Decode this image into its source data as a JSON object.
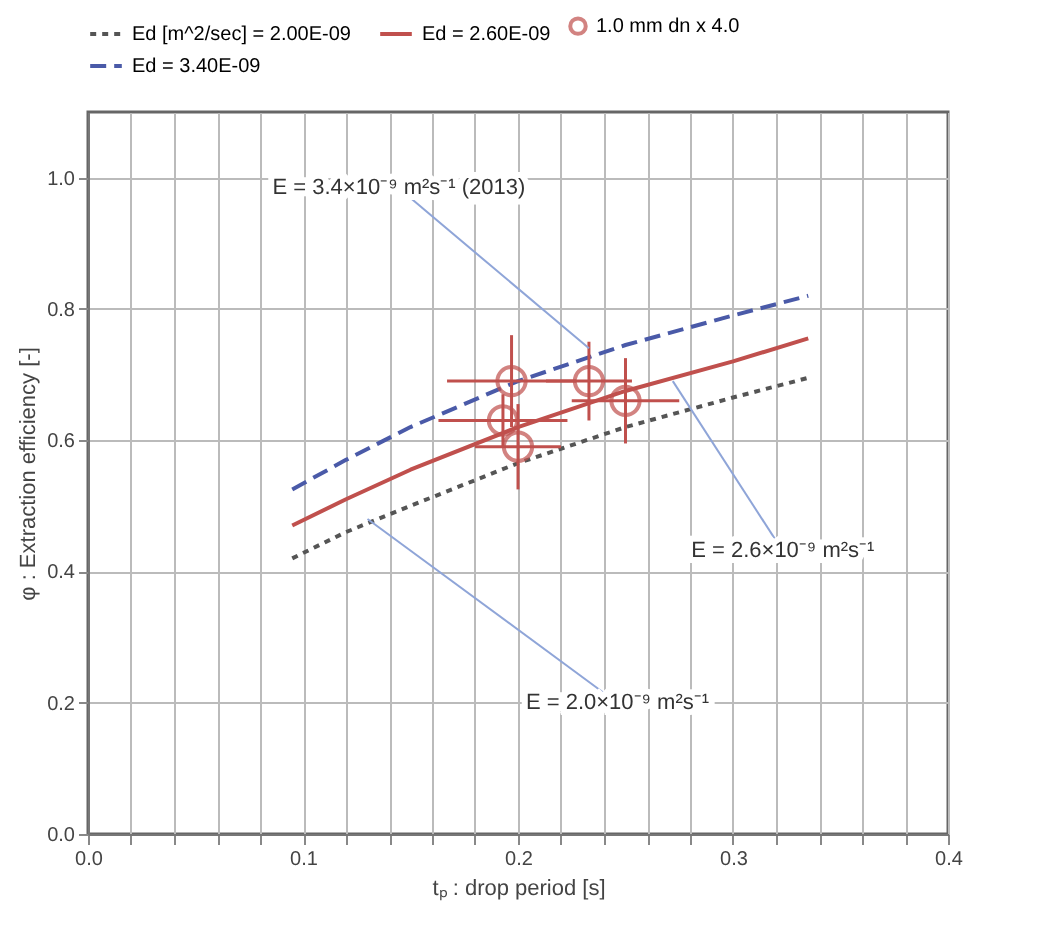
{
  "chart_data": {
    "type": "line",
    "xlabel": "tₚ : drop period [s]",
    "ylabel": "φ : Extraction efficiency [-]",
    "xlim": [
      0,
      0.4
    ],
    "ylim": [
      0,
      1.1
    ],
    "xticks": [
      {
        "value": 0,
        "label": "0.0"
      },
      {
        "value": 0.02,
        "label": null
      },
      {
        "value": 0.04,
        "label": null
      },
      {
        "value": 0.06,
        "label": null
      },
      {
        "value": 0.08,
        "label": null
      },
      0.1,
      {
        "value": 0.12,
        "label": null
      },
      {
        "value": 0.14,
        "label": null
      },
      {
        "value": 0.16,
        "label": null
      },
      {
        "value": 0.18,
        "label": null
      },
      0.2,
      {
        "value": 0.22,
        "label": null
      },
      {
        "value": 0.24,
        "label": null
      },
      {
        "value": 0.26,
        "label": null
      },
      {
        "value": 0.28,
        "label": null
      },
      0.3,
      {
        "value": 0.32,
        "label": null
      },
      {
        "value": 0.34,
        "label": null
      },
      {
        "value": 0.36,
        "label": null
      },
      {
        "value": 0.38,
        "label": null
      },
      0.4
    ],
    "yticks": [
      {
        "value": 0,
        "label": "0.0"
      },
      0.2,
      0.4,
      0.6,
      0.8,
      {
        "value": 1,
        "label": "1.0"
      }
    ],
    "grid": true,
    "legend": "top",
    "series": [
      {
        "name": "Ed [m^2/sec] = 2.00E-09",
        "line_style": "dotted",
        "color": "#555555",
        "x": [
          0.095,
          0.12,
          0.15,
          0.2,
          0.25,
          0.3,
          0.335
        ],
        "values": [
          0.42,
          0.46,
          0.5,
          0.565,
          0.62,
          0.665,
          0.695
        ]
      },
      {
        "name": "Ed = 2.60E-09",
        "line_style": "solid",
        "color": "#c0504d",
        "x": [
          0.095,
          0.12,
          0.15,
          0.2,
          0.25,
          0.3,
          0.335
        ],
        "values": [
          0.47,
          0.51,
          0.555,
          0.62,
          0.675,
          0.72,
          0.755
        ]
      },
      {
        "name": "Ed = 3.40E-09",
        "line_style": "dashed",
        "color": "#4a5aa8",
        "x": [
          0.095,
          0.12,
          0.15,
          0.2,
          0.25,
          0.3,
          0.335
        ],
        "values": [
          0.525,
          0.57,
          0.62,
          0.69,
          0.745,
          0.79,
          0.82
        ]
      },
      {
        "name": "1.0 mm dn x 4.0",
        "type": "scatter",
        "marker": "circle",
        "color": "#c0504d",
        "x": [
          0.197,
          0.193,
          0.2,
          0.233,
          0.25
        ],
        "values": [
          0.69,
          0.63,
          0.59,
          0.69,
          0.66
        ],
        "errors": [
          0.07,
          0.04,
          0.065,
          0.06,
          0.065
        ],
        "xerrors": [
          0.03,
          0.03,
          0.02,
          0.02,
          0.025
        ]
      }
    ],
    "annotations": [
      {
        "text": "E = 3.4×10⁻⁹ m²s⁻¹ (2013)",
        "x": 0.233,
        "y": 0.74
      },
      {
        "text": "E = 2.6×10⁻⁹ m²s⁻¹",
        "x": 0.272,
        "y": 0.69
      },
      {
        "text": "E = 2.0×10⁻⁹ m²s⁻¹",
        "x": 0.13,
        "y": 0.48
      }
    ]
  }
}
